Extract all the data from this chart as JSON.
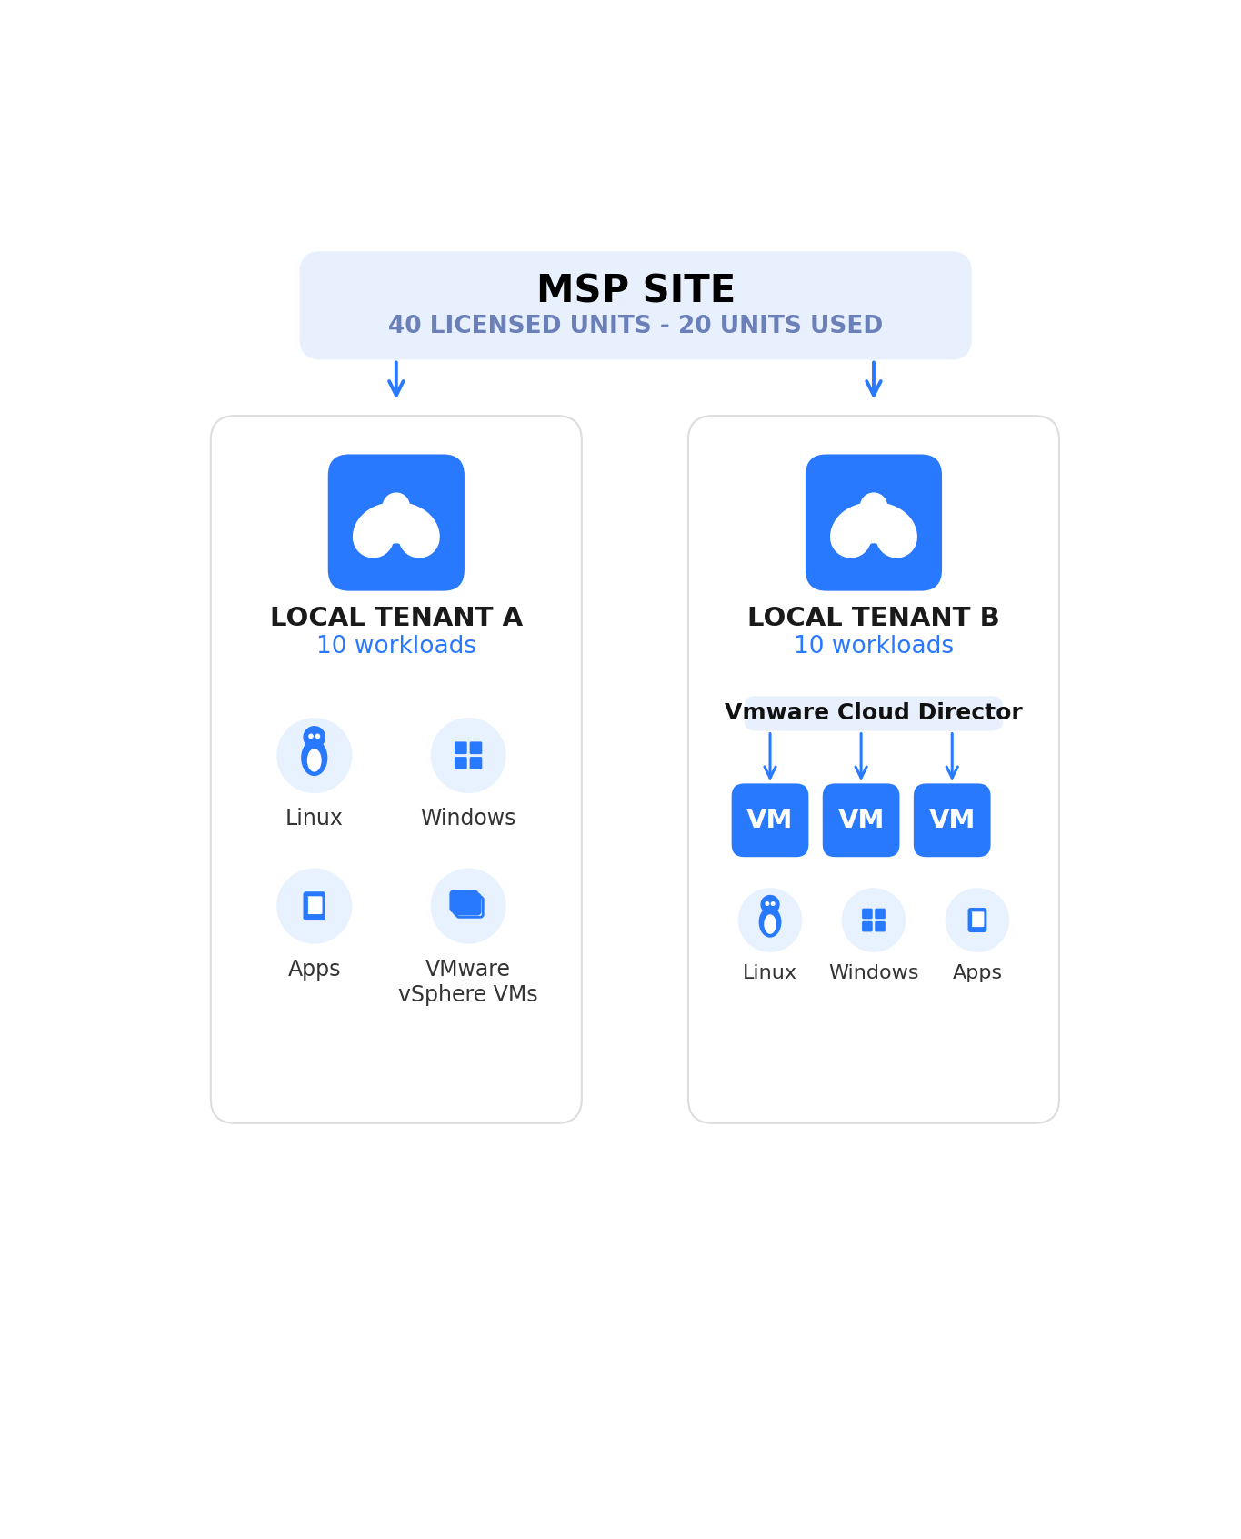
{
  "bg_color": "#ffffff",
  "msp_box_color": "#E8F0FE",
  "msp_title": "MSP SITE",
  "msp_subtitle": "40 LICENSED UNITS - 20 UNITS USED",
  "msp_title_color": "#000000",
  "msp_subtitle_color": "#6B80B8",
  "tenant_box_color": "#ffffff",
  "tenant_box_border": "#DDDDDD",
  "blue_btn_color": "#2979FF",
  "blue_icon_circle": "#E8F2FF",
  "blue_icon_color": "#2979FF",
  "arrow_color": "#2979FF",
  "tenant_a_title": "LOCAL TENANT A",
  "tenant_b_title": "LOCAL TENANT B",
  "workloads_label": "10 workloads",
  "workloads_color": "#2979FF",
  "vcd_label": "Vmware Cloud Director",
  "vcd_box_color": "#E8F0FE",
  "vm_label": "VM",
  "vm_color": "#ffffff",
  "linux_label": "Linux",
  "windows_label": "Windows",
  "apps_label": "Apps",
  "vsphere_label": "VMware\nvSphere VMs",
  "fig_w": 13.65,
  "fig_h": 16.92,
  "dpi": 100
}
